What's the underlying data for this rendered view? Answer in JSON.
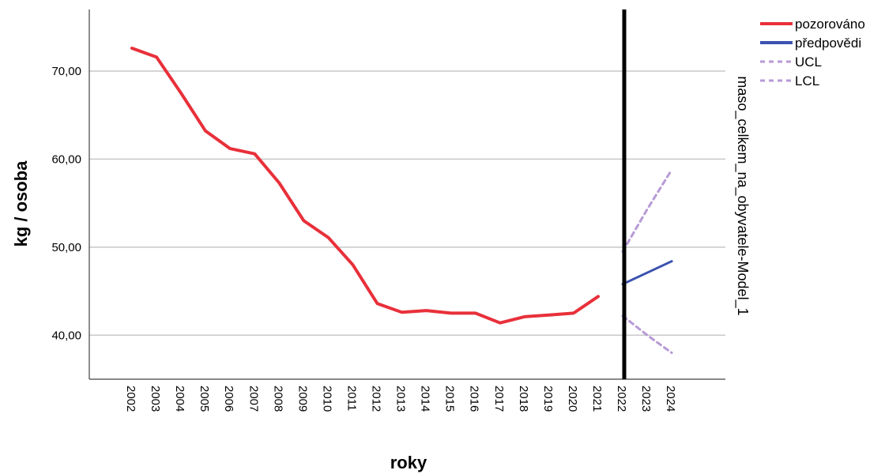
{
  "chart_data": {
    "type": "line",
    "xlabel": "roky",
    "ylabel": "kg / osoba",
    "side_label": "maso_celkem_na_obyvatele-Model_1",
    "ylim": [
      35,
      77
    ],
    "yticks": [
      40,
      50,
      60,
      70
    ],
    "ytick_labels": [
      "40,00",
      "50,00",
      "60,00",
      "70,00"
    ],
    "x_categories": [
      "2002",
      "2003",
      "2004",
      "2005",
      "2006",
      "2007",
      "2008",
      "2009",
      "2010",
      "2011",
      "2012",
      "2013",
      "2014",
      "2015",
      "2016",
      "2017",
      "2018",
      "2019",
      "2020",
      "2021",
      "2022",
      "2023",
      "2024"
    ],
    "forecast_start": "2022",
    "grid": true,
    "legend_position": "top-right",
    "series": [
      {
        "name": "pozorováno",
        "color": "#e8303a",
        "dash": "solid",
        "x": [
          "2002",
          "2003",
          "2004",
          "2005",
          "2006",
          "2007",
          "2008",
          "2009",
          "2010",
          "2011",
          "2012",
          "2013",
          "2014",
          "2015",
          "2016",
          "2017",
          "2018",
          "2019",
          "2020",
          "2021"
        ],
        "values": [
          72.6,
          71.6,
          67.5,
          63.2,
          61.2,
          60.6,
          57.3,
          53.0,
          51.1,
          48.0,
          43.6,
          42.6,
          42.8,
          42.5,
          42.5,
          41.4,
          42.1,
          42.3,
          42.5,
          44.4
        ]
      },
      {
        "name": "předpovědi",
        "color": "#3a52b0",
        "dash": "solid",
        "x": [
          "2022",
          "2023",
          "2024"
        ],
        "values": [
          45.8,
          47.1,
          48.4
        ]
      },
      {
        "name": "UCL",
        "color": "#b79ad6",
        "dash": "dashed",
        "x": [
          "2022",
          "2023",
          "2024"
        ],
        "values": [
          49.5,
          54.3,
          58.8
        ]
      },
      {
        "name": "LCL",
        "color": "#b79ad6",
        "dash": "dashed",
        "x": [
          "2022",
          "2023",
          "2024"
        ],
        "values": [
          42.2,
          40.0,
          38.0
        ]
      }
    ]
  }
}
